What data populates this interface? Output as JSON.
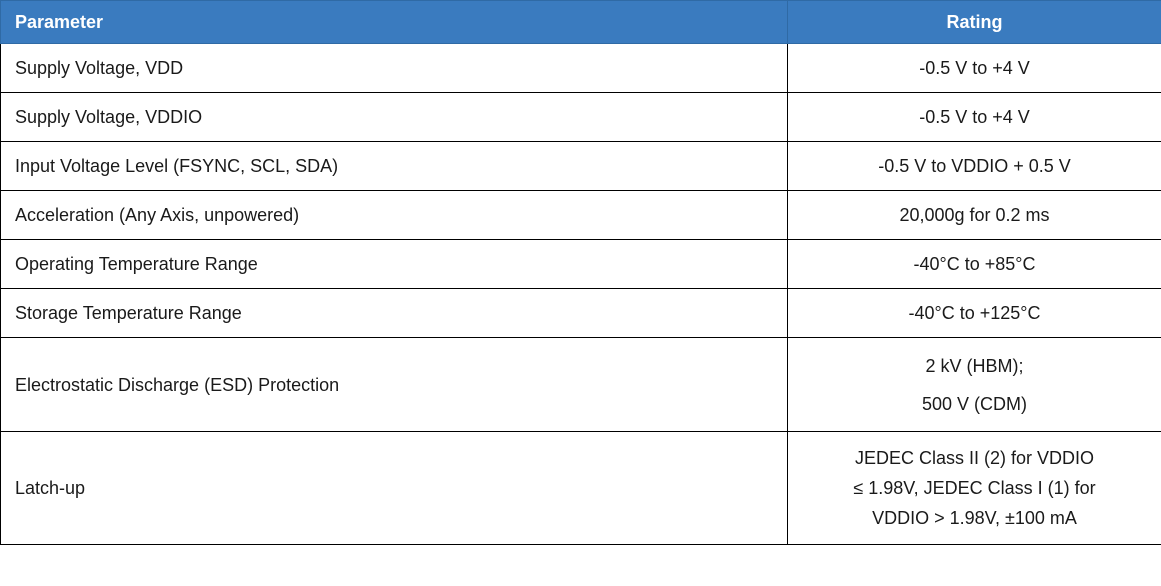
{
  "table": {
    "headers": {
      "parameter": "Parameter",
      "rating": "Rating"
    },
    "rows": [
      {
        "parameter": "Supply Voltage, VDD",
        "rating": [
          "-0.5 V to +4 V"
        ]
      },
      {
        "parameter": "Supply Voltage, VDDIO",
        "rating": [
          "-0.5 V to +4 V"
        ]
      },
      {
        "parameter": "Input Voltage Level (FSYNC, SCL, SDA)",
        "rating": [
          "-0.5 V to VDDIO + 0.5 V"
        ]
      },
      {
        "parameter": "Acceleration (Any Axis, unpowered)",
        "rating": [
          "20,000g for 0.2 ms"
        ]
      },
      {
        "parameter": "Operating Temperature Range",
        "rating": [
          "-40°C to +85°C"
        ]
      },
      {
        "parameter": "Storage Temperature Range",
        "rating": [
          "-40°C to +125°C"
        ]
      },
      {
        "parameter": "Electrostatic Discharge (ESD) Protection",
        "rating": [
          "2 kV (HBM);",
          "500 V (CDM)"
        ]
      },
      {
        "parameter": "Latch-up",
        "rating": [
          "JEDEC Class II (2) for VDDIO",
          "≤ 1.98V, JEDEC Class I (1) for",
          "VDDIO > 1.98V, ±100 mA"
        ]
      }
    ]
  },
  "colors": {
    "header_background": "#3a7bbf",
    "header_text": "#ffffff",
    "border": "#000000"
  }
}
